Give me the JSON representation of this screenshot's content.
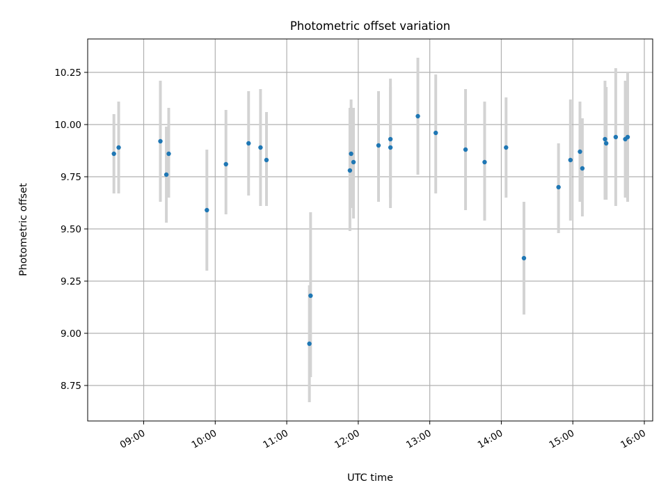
{
  "chart_data": {
    "type": "scatter",
    "title": "Photometric offset variation",
    "xlabel": "UTC time",
    "ylabel": "Photometric offset",
    "x_ticks": [
      "09:00",
      "10:00",
      "11:00",
      "12:00",
      "13:00",
      "14:00",
      "15:00",
      "16:00"
    ],
    "y_ticks": [
      "8.75",
      "9.00",
      "9.25",
      "9.50",
      "9.75",
      "10.00",
      "10.25"
    ],
    "xlim": [
      "08:13",
      "16:07"
    ],
    "ylim": [
      8.58,
      10.41
    ],
    "grid": true,
    "colors": {
      "point": "#1f77b4",
      "errorbar": "#d3d3d3",
      "grid": "#b0b0b0"
    },
    "points": [
      {
        "x": "08:35",
        "y": 9.86,
        "lo": 9.67,
        "hi": 10.05
      },
      {
        "x": "08:39",
        "y": 9.89,
        "lo": 9.67,
        "hi": 10.11
      },
      {
        "x": "09:14",
        "y": 9.92,
        "lo": 9.63,
        "hi": 10.21
      },
      {
        "x": "09:19",
        "y": 9.76,
        "lo": 9.53,
        "hi": 9.99
      },
      {
        "x": "09:21",
        "y": 9.86,
        "lo": 9.65,
        "hi": 10.08
      },
      {
        "x": "09:53",
        "y": 9.59,
        "lo": 9.3,
        "hi": 9.88
      },
      {
        "x": "10:09",
        "y": 9.81,
        "lo": 9.57,
        "hi": 10.07
      },
      {
        "x": "10:28",
        "y": 9.91,
        "lo": 9.66,
        "hi": 10.16
      },
      {
        "x": "10:38",
        "y": 9.89,
        "lo": 9.61,
        "hi": 10.17
      },
      {
        "x": "10:43",
        "y": 9.83,
        "lo": 9.61,
        "hi": 10.06
      },
      {
        "x": "11:19",
        "y": 8.95,
        "lo": 8.67,
        "hi": 9.23
      },
      {
        "x": "11:20",
        "y": 9.18,
        "lo": 8.79,
        "hi": 9.58
      },
      {
        "x": "11:53",
        "y": 9.78,
        "lo": 9.49,
        "hi": 10.08
      },
      {
        "x": "11:54",
        "y": 9.86,
        "lo": 9.6,
        "hi": 10.12
      },
      {
        "x": "11:56",
        "y": 9.82,
        "lo": 9.55,
        "hi": 10.08
      },
      {
        "x": "12:17",
        "y": 9.9,
        "lo": 9.63,
        "hi": 10.16
      },
      {
        "x": "12:27",
        "y": 9.89,
        "lo": 9.6,
        "hi": 10.18
      },
      {
        "x": "12:27",
        "y": 9.93,
        "lo": 9.65,
        "hi": 10.22
      },
      {
        "x": "12:50",
        "y": 10.04,
        "lo": 9.76,
        "hi": 10.32
      },
      {
        "x": "13:05",
        "y": 9.96,
        "lo": 9.67,
        "hi": 10.24
      },
      {
        "x": "13:30",
        "y": 9.88,
        "lo": 9.59,
        "hi": 10.17
      },
      {
        "x": "13:46",
        "y": 9.82,
        "lo": 9.54,
        "hi": 10.11
      },
      {
        "x": "14:04",
        "y": 9.89,
        "lo": 9.65,
        "hi": 10.13
      },
      {
        "x": "14:19",
        "y": 9.36,
        "lo": 9.09,
        "hi": 9.63
      },
      {
        "x": "14:48",
        "y": 9.7,
        "lo": 9.48,
        "hi": 9.91
      },
      {
        "x": "14:58",
        "y": 9.83,
        "lo": 9.54,
        "hi": 10.12
      },
      {
        "x": "15:06",
        "y": 9.87,
        "lo": 9.63,
        "hi": 10.11
      },
      {
        "x": "15:08",
        "y": 9.79,
        "lo": 9.56,
        "hi": 10.03
      },
      {
        "x": "15:27",
        "y": 9.93,
        "lo": 9.64,
        "hi": 10.21
      },
      {
        "x": "15:28",
        "y": 9.91,
        "lo": 9.64,
        "hi": 10.18
      },
      {
        "x": "15:36",
        "y": 9.94,
        "lo": 9.61,
        "hi": 10.27
      },
      {
        "x": "15:44",
        "y": 9.93,
        "lo": 9.65,
        "hi": 10.21
      },
      {
        "x": "15:46",
        "y": 9.94,
        "lo": 9.63,
        "hi": 10.25
      }
    ]
  }
}
